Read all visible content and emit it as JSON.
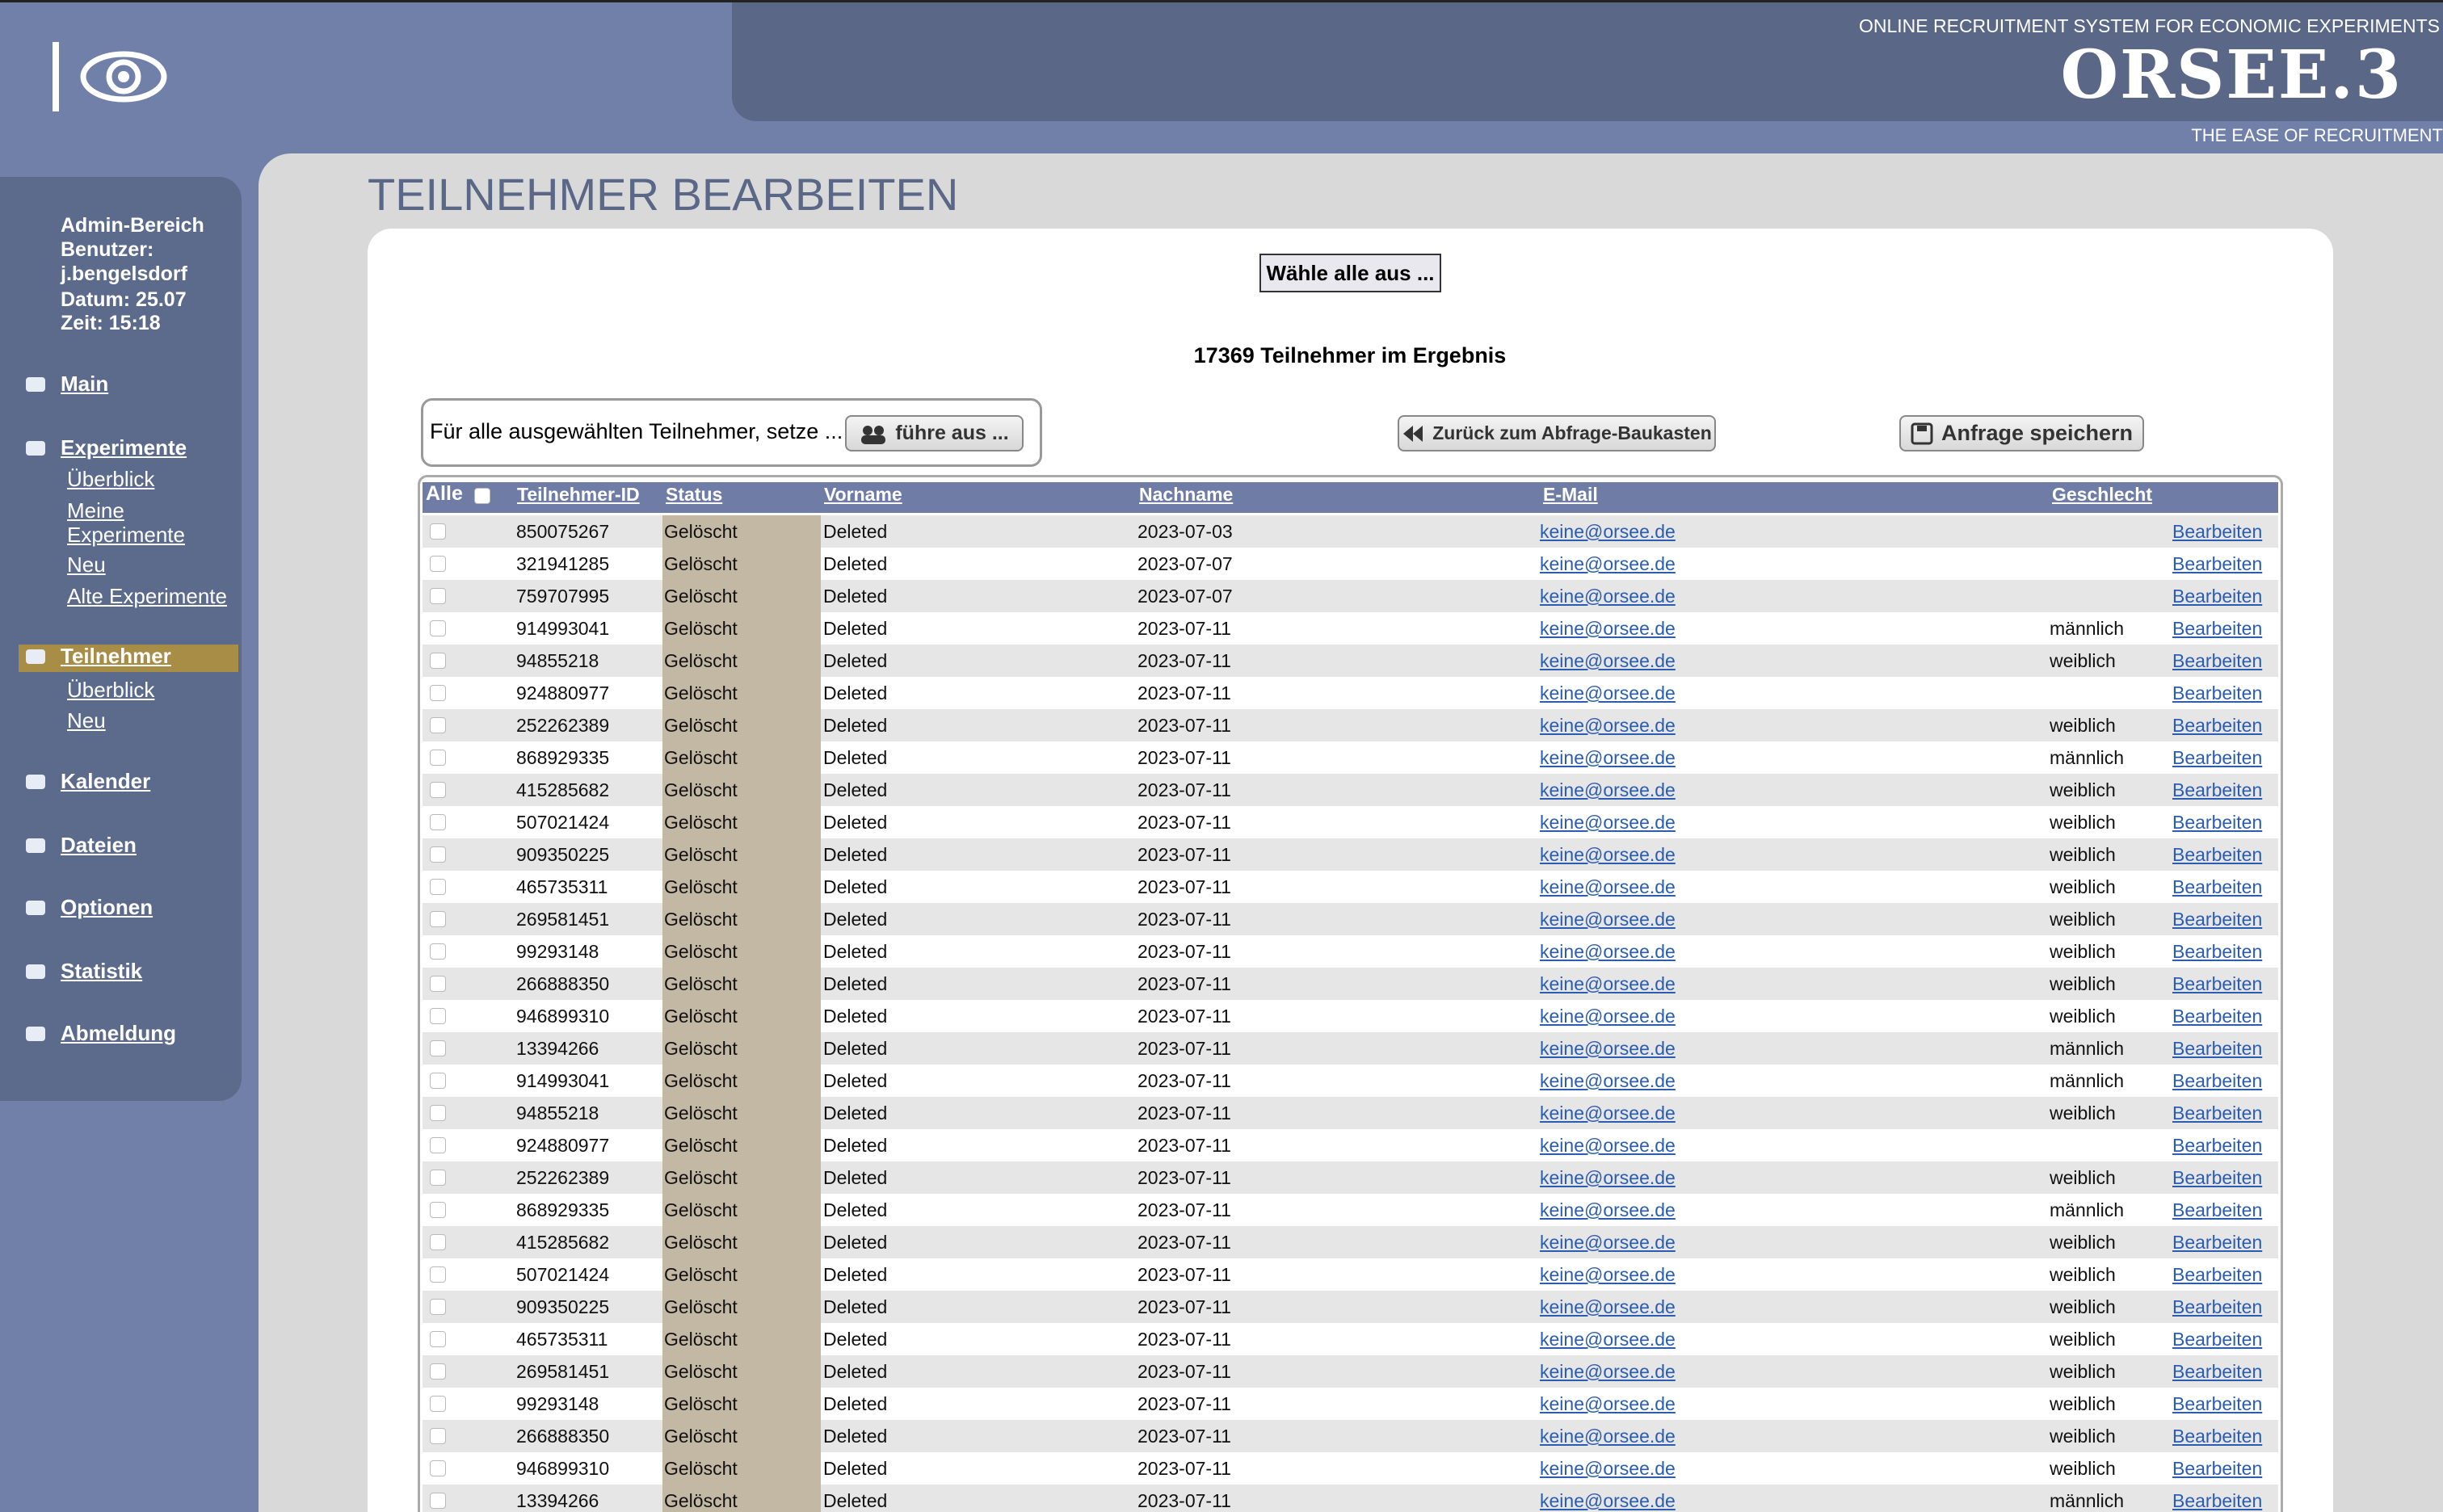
{
  "header": {
    "tagline": "ONLINE RECRUITMENT SYSTEM FOR ECONOMIC EXPERIMENTS",
    "logo": "ORSEE.3",
    "slogan": "THE EASE OF RECRUITMENT"
  },
  "sidebar": {
    "info": [
      "Admin-Bereich",
      "Benutzer:",
      "j.bengelsdorf",
      "Datum: 25.07",
      "Zeit: 15:18"
    ],
    "nav": [
      {
        "label": "Main"
      },
      {
        "label": "Experimente",
        "items": [
          "Überblick",
          "Meine Experimente",
          "Neu",
          "Alte Experimente"
        ]
      },
      {
        "label": "Teilnehmer",
        "items": [
          "Überblick",
          "Neu"
        ]
      },
      {
        "label": "Kalender"
      },
      {
        "label": "Dateien"
      },
      {
        "label": "Optionen"
      },
      {
        "label": "Statistik"
      },
      {
        "label": "Abmeldung"
      }
    ]
  },
  "page": {
    "title": "TEILNEHMER BEARBEITEN",
    "select_all": "Wähle alle aus ...",
    "result_count": "17369 Teilnehmer im Ergebnis",
    "bulk_action_label": "Für alle ausgewählten Teilnehmer, setze ...",
    "run_button": "führe aus ...",
    "back_button": "Zurück zum Abfrage-Baukasten",
    "save_button": "Anfrage speichern"
  },
  "table": {
    "select_all_label": "Alle",
    "columns": [
      "Teilnehmer-ID",
      "Status",
      "Vorname",
      "Nachname",
      "E-Mail",
      "Geschlecht"
    ],
    "rows": [
      [
        "850075267",
        "Gelöscht",
        "Deleted",
        "2023-07-03",
        "keine@orsee.de",
        null,
        "Bearbeiten"
      ],
      [
        "321941285",
        "Gelöscht",
        "Deleted",
        "2023-07-07",
        "keine@orsee.de",
        null,
        "Bearbeiten"
      ],
      [
        "759707995",
        "Gelöscht",
        "Deleted",
        "2023-07-07",
        "keine@orsee.de",
        null,
        "Bearbeiten"
      ],
      [
        "914993041",
        "Gelöscht",
        "Deleted",
        "2023-07-11",
        "keine@orsee.de",
        "männlich",
        "Bearbeiten"
      ],
      [
        "94855218",
        "Gelöscht",
        "Deleted",
        "2023-07-11",
        "keine@orsee.de",
        "weiblich",
        "Bearbeiten"
      ],
      [
        "924880977",
        "Gelöscht",
        "Deleted",
        "2023-07-11",
        "keine@orsee.de",
        null,
        "Bearbeiten"
      ],
      [
        "252262389",
        "Gelöscht",
        "Deleted",
        "2023-07-11",
        "keine@orsee.de",
        "weiblich",
        "Bearbeiten"
      ],
      [
        "868929335",
        "Gelöscht",
        "Deleted",
        "2023-07-11",
        "keine@orsee.de",
        "männlich",
        "Bearbeiten"
      ],
      [
        "415285682",
        "Gelöscht",
        "Deleted",
        "2023-07-11",
        "keine@orsee.de",
        "weiblich",
        "Bearbeiten"
      ],
      [
        "507021424",
        "Gelöscht",
        "Deleted",
        "2023-07-11",
        "keine@orsee.de",
        "weiblich",
        "Bearbeiten"
      ],
      [
        "909350225",
        "Gelöscht",
        "Deleted",
        "2023-07-11",
        "keine@orsee.de",
        "weiblich",
        "Bearbeiten"
      ],
      [
        "465735311",
        "Gelöscht",
        "Deleted",
        "2023-07-11",
        "keine@orsee.de",
        "weiblich",
        "Bearbeiten"
      ],
      [
        "269581451",
        "Gelöscht",
        "Deleted",
        "2023-07-11",
        "keine@orsee.de",
        "weiblich",
        "Bearbeiten"
      ],
      [
        "99293148",
        "Gelöscht",
        "Deleted",
        "2023-07-11",
        "keine@orsee.de",
        "weiblich",
        "Bearbeiten"
      ],
      [
        "266888350",
        "Gelöscht",
        "Deleted",
        "2023-07-11",
        "keine@orsee.de",
        "weiblich",
        "Bearbeiten"
      ],
      [
        "946899310",
        "Gelöscht",
        "Deleted",
        "2023-07-11",
        "keine@orsee.de",
        "weiblich",
        "Bearbeiten"
      ],
      [
        "13394266",
        "Gelöscht",
        "Deleted",
        "2023-07-11",
        "keine@orsee.de",
        "männlich",
        "Bearbeiten"
      ],
      [
        "914993041",
        "Gelöscht",
        "Deleted",
        "2023-07-11",
        "keine@orsee.de",
        "männlich",
        "Bearbeiten"
      ],
      [
        "94855218",
        "Gelöscht",
        "Deleted",
        "2023-07-11",
        "keine@orsee.de",
        "weiblich",
        "Bearbeiten"
      ],
      [
        "924880977",
        "Gelöscht",
        "Deleted",
        "2023-07-11",
        "keine@orsee.de",
        null,
        "Bearbeiten"
      ],
      [
        "252262389",
        "Gelöscht",
        "Deleted",
        "2023-07-11",
        "keine@orsee.de",
        "weiblich",
        "Bearbeiten"
      ],
      [
        "868929335",
        "Gelöscht",
        "Deleted",
        "2023-07-11",
        "keine@orsee.de",
        "männlich",
        "Bearbeiten"
      ],
      [
        "415285682",
        "Gelöscht",
        "Deleted",
        "2023-07-11",
        "keine@orsee.de",
        "weiblich",
        "Bearbeiten"
      ],
      [
        "507021424",
        "Gelöscht",
        "Deleted",
        "2023-07-11",
        "keine@orsee.de",
        "weiblich",
        "Bearbeiten"
      ],
      [
        "909350225",
        "Gelöscht",
        "Deleted",
        "2023-07-11",
        "keine@orsee.de",
        "weiblich",
        "Bearbeiten"
      ],
      [
        "465735311",
        "Gelöscht",
        "Deleted",
        "2023-07-11",
        "keine@orsee.de",
        "weiblich",
        "Bearbeiten"
      ],
      [
        "269581451",
        "Gelöscht",
        "Deleted",
        "2023-07-11",
        "keine@orsee.de",
        "weiblich",
        "Bearbeiten"
      ],
      [
        "99293148",
        "Gelöscht",
        "Deleted",
        "2023-07-11",
        "keine@orsee.de",
        "weiblich",
        "Bearbeiten"
      ],
      [
        "266888350",
        "Gelöscht",
        "Deleted",
        "2023-07-11",
        "keine@orsee.de",
        "weiblich",
        "Bearbeiten"
      ],
      [
        "946899310",
        "Gelöscht",
        "Deleted",
        "2023-07-11",
        "keine@orsee.de",
        "weiblich",
        "Bearbeiten"
      ],
      [
        "13394266",
        "Gelöscht",
        "Deleted",
        "2023-07-11",
        "keine@orsee.de",
        "männlich",
        "Bearbeiten"
      ]
    ]
  }
}
